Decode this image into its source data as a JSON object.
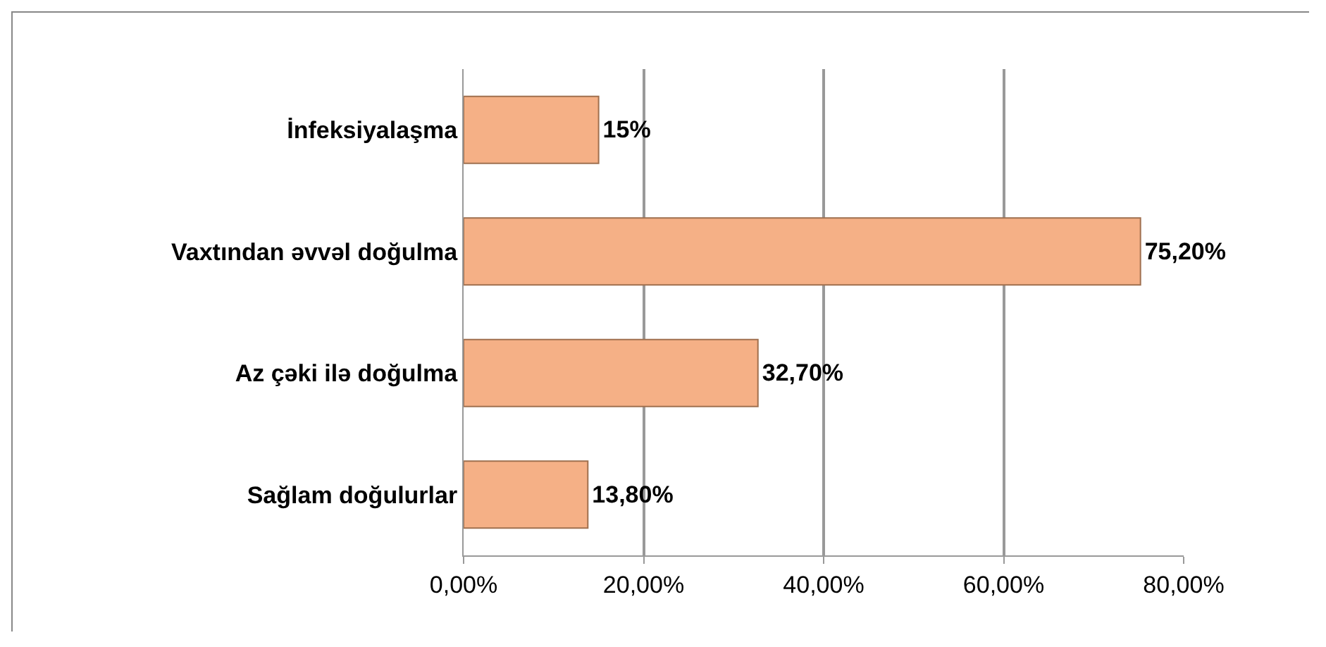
{
  "chart_data": {
    "type": "bar",
    "orientation": "horizontal",
    "categories": [
      "İnfeksiyalaşma",
      "Vaxtından əvvəl doğulma",
      "Az çəki ilə doğulma",
      "Sağlam doğulurlar"
    ],
    "values": [
      15,
      75.2,
      32.7,
      13.8
    ],
    "value_labels": [
      "15%",
      "75,20%",
      "32,70%",
      "13,80%"
    ],
    "color": "#f5b086",
    "xlim": [
      0,
      80
    ],
    "xticks": [
      {
        "value": 0,
        "label": "0,00%"
      },
      {
        "value": 20,
        "label": "20,00%"
      },
      {
        "value": 40,
        "label": "40,00%"
      },
      {
        "value": 60,
        "label": "60,00%"
      },
      {
        "value": 80,
        "label": "80,00%"
      }
    ],
    "grid": "x"
  }
}
